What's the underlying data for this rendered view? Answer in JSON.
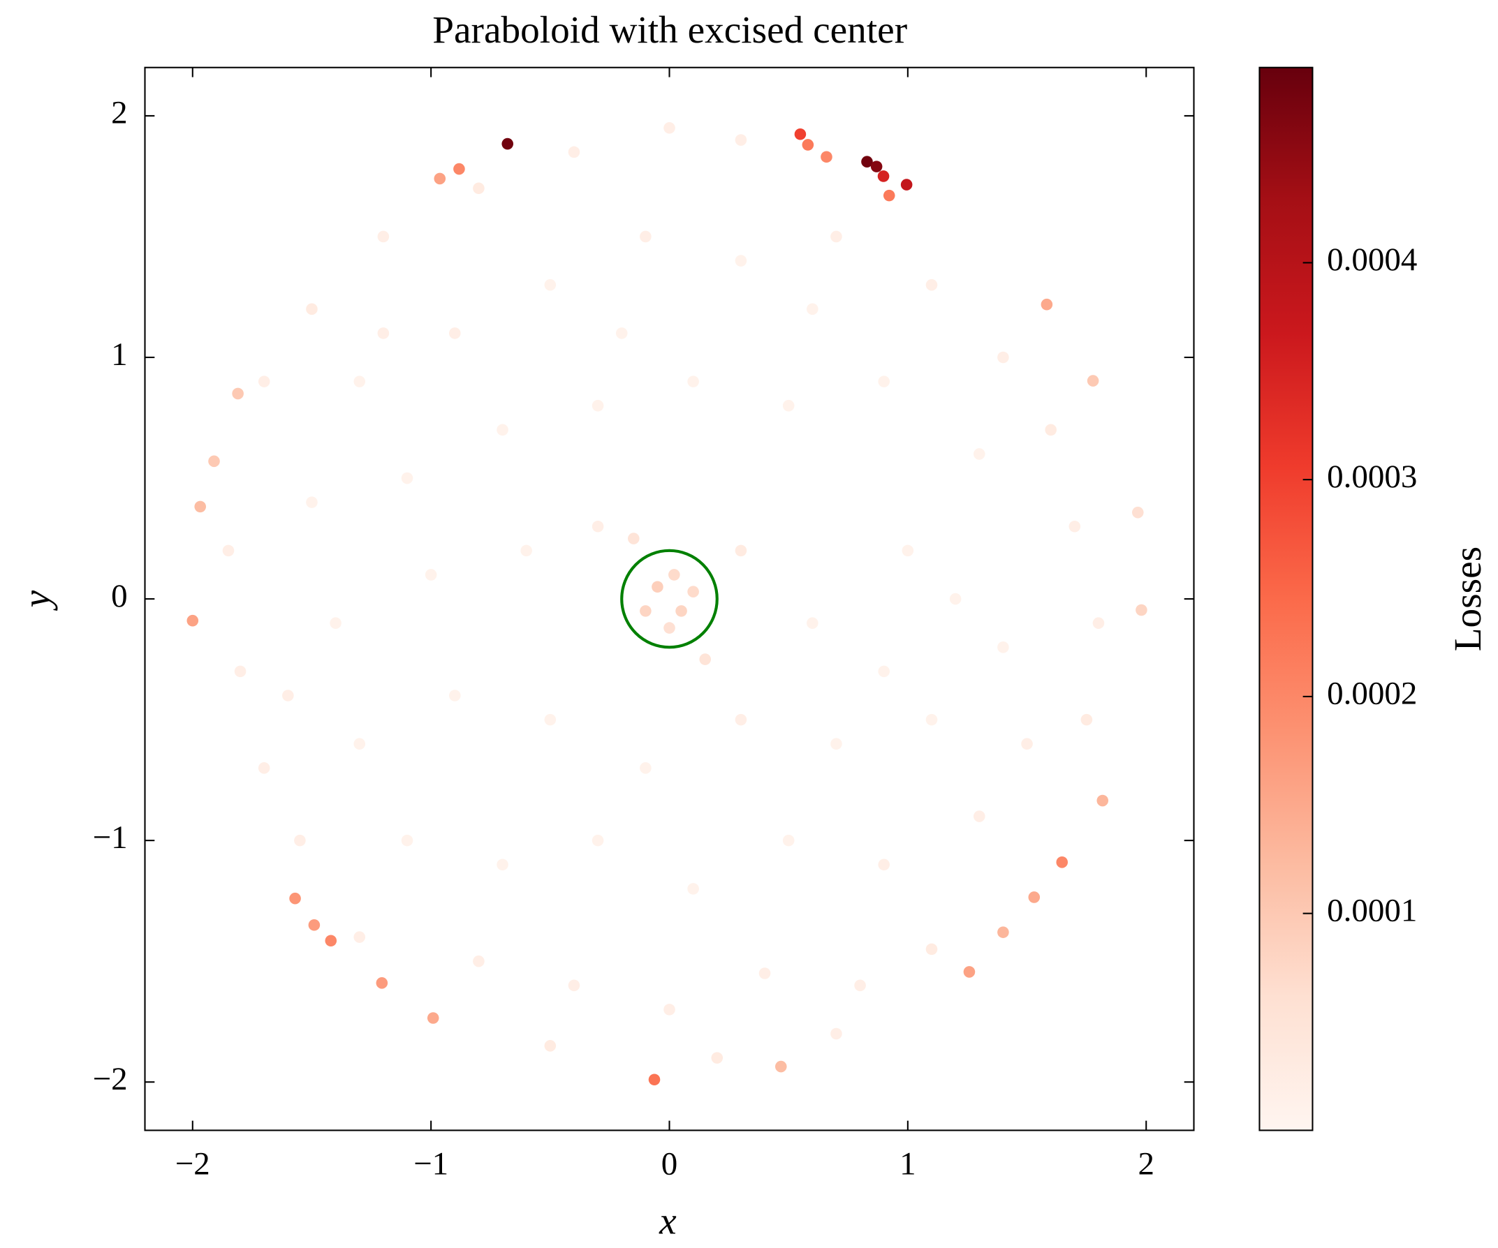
{
  "chart_data": {
    "type": "scatter",
    "title": "Paraboloid with excised center",
    "xlabel": "x",
    "ylabel": "y",
    "colorbar_label": "Losses",
    "colormap": "Reds",
    "xlim": [
      -2.2,
      2.2
    ],
    "ylim": [
      -2.2,
      2.2
    ],
    "clim": [
      0,
      0.00049
    ],
    "xticks": [
      {
        "value": -2,
        "label": "−2"
      },
      {
        "value": -1,
        "label": "−1"
      },
      0,
      1,
      2
    ],
    "yticks": [
      {
        "value": -2,
        "label": "−2"
      },
      {
        "value": -1,
        "label": "−1"
      },
      0,
      1,
      2
    ],
    "cticks": [
      0.0001,
      0.0002,
      0.0003,
      0.0004
    ],
    "circle": {
      "center": [
        0,
        0
      ],
      "radius": 0.2,
      "color": "#008000"
    },
    "x": [
      -1.5,
      -1.2,
      -0.8,
      -0.4,
      0,
      0.3,
      -1.7,
      -1.3,
      -0.9,
      -0.5,
      -0.1,
      0.3,
      0.7,
      1.1,
      1.4,
      1.6,
      -1.85,
      -1.5,
      -1.1,
      -0.7,
      -0.3,
      0.1,
      0.5,
      0.9,
      1.3,
      1.7,
      -1.8,
      -1.4,
      -1.0,
      -0.6,
      -0.3,
      0.3,
      0.6,
      1.0,
      1.4,
      1.8,
      -1.7,
      -1.3,
      -0.9,
      -0.5,
      -0.1,
      0.3,
      0.7,
      1.1,
      1.5,
      1.75,
      -1.55,
      -1.1,
      -0.7,
      -0.3,
      0.1,
      0.5,
      0.9,
      1.3,
      -1.3,
      -0.8,
      -0.4,
      0,
      0.4,
      0.8,
      1.1,
      -0.5,
      0.2,
      0.7,
      -1.2,
      0.6,
      -0.2,
      1.2,
      -1.6,
      0.9,
      -0.05,
      0.05,
      0.02,
      -0.1,
      0.1,
      0,
      -0.15,
      0.15,
      -0.679,
      0.549,
      0.581,
      0.659,
      0.829,
      0.869,
      0.898,
      0.995,
      0.922,
      -0.882,
      -0.963,
      1.583,
      1.777,
      -2.0,
      -1.968,
      -1.91,
      -1.81,
      -1.57,
      -1.49,
      -1.42,
      -1.206,
      -0.991,
      -0.063,
      0.468,
      1.258,
      1.4,
      1.53,
      1.647,
      1.817,
      1.98,
      1.965
    ],
    "y": [
      1.2,
      1.5,
      1.7,
      1.85,
      1.95,
      1.9,
      0.9,
      0.9,
      1.1,
      1.3,
      1.5,
      1.4,
      1.5,
      1.3,
      1.0,
      0.7,
      0.2,
      0.4,
      0.5,
      0.7,
      0.8,
      0.9,
      0.8,
      0.9,
      0.6,
      0.3,
      -0.3,
      -0.1,
      0.1,
      0.2,
      0.3,
      0.2,
      -0.1,
      0.2,
      -0.2,
      -0.1,
      -0.7,
      -0.6,
      -0.4,
      -0.5,
      -0.7,
      -0.5,
      -0.6,
      -0.5,
      -0.6,
      -0.5,
      -1.0,
      -1.0,
      -1.1,
      -1.0,
      -1.2,
      -1.0,
      -1.1,
      -0.9,
      -1.4,
      -1.5,
      -1.6,
      -1.7,
      -1.55,
      -1.6,
      -1.45,
      -1.85,
      -1.9,
      -1.8,
      1.1,
      1.2,
      1.1,
      0.0,
      -0.4,
      -0.3,
      0.05,
      -0.05,
      0.1,
      -0.05,
      0.03,
      -0.12,
      0.25,
      -0.25,
      1.884,
      1.924,
      1.88,
      1.83,
      1.81,
      1.79,
      1.75,
      1.715,
      1.67,
      1.78,
      1.74,
      1.219,
      0.903,
      -0.09,
      0.382,
      0.57,
      0.85,
      -1.24,
      -1.35,
      -1.415,
      -1.59,
      -1.735,
      -1.99,
      -1.936,
      -1.544,
      -1.38,
      -1.235,
      -1.09,
      -0.835,
      -0.046,
      0.358
    ],
    "losses": [
      3e-05,
      2e-05,
      3e-05,
      2e-05,
      2e-05,
      2e-05,
      2e-05,
      1e-05,
      2e-05,
      1e-05,
      2e-05,
      1e-05,
      2e-05,
      2e-05,
      2e-05,
      3e-05,
      2e-05,
      1e-05,
      1e-05,
      1e-05,
      1e-05,
      1e-05,
      1e-05,
      1e-05,
      1e-05,
      2e-05,
      2e-05,
      1e-05,
      1e-05,
      1e-05,
      2e-05,
      3e-05,
      1e-05,
      1e-05,
      1e-05,
      2e-05,
      2e-05,
      1e-05,
      1e-05,
      1e-05,
      1e-05,
      2e-05,
      1e-05,
      1e-05,
      2e-05,
      3e-05,
      2e-05,
      1e-05,
      1e-05,
      1e-05,
      1e-05,
      1e-05,
      2e-05,
      2e-05,
      2e-05,
      2e-05,
      2e-05,
      2e-05,
      2e-05,
      2e-05,
      3e-05,
      3e-05,
      3e-05,
      2e-05,
      2e-05,
      1e-05,
      1e-05,
      1e-05,
      2e-05,
      1e-05,
      9e-05,
      8e-05,
      7e-05,
      8e-05,
      7e-05,
      6e-05,
      5e-05,
      5e-05,
      0.00048,
      0.0003,
      0.00022,
      0.0002,
      0.00048,
      0.00046,
      0.00035,
      0.00038,
      0.00022,
      0.0002,
      0.00016,
      0.00015,
      0.0001,
      0.00016,
      0.00012,
      0.0001,
      0.0001,
      0.00018,
      0.00017,
      0.0002,
      0.00017,
      0.00015,
      0.00023,
      0.00012,
      0.00016,
      0.00013,
      0.00015,
      0.0002,
      0.00013,
      8e-05,
      6e-05
    ]
  }
}
